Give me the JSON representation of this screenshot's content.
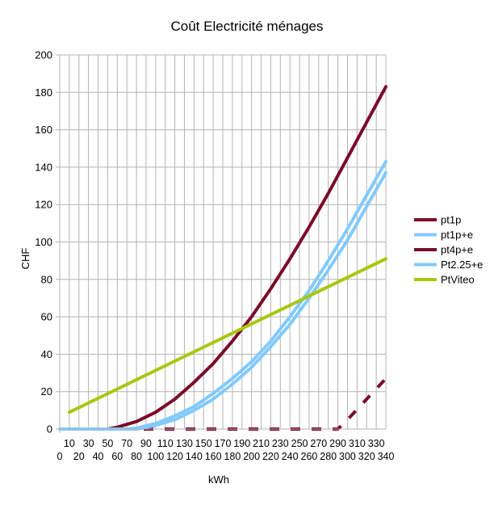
{
  "chart_data": {
    "type": "line",
    "title": "Coût Electricité ménages",
    "xlabel": "kWh",
    "ylabel": "CHF",
    "xlim": [
      0,
      340
    ],
    "ylim": [
      0,
      200
    ],
    "y_ticks": [
      0,
      20,
      40,
      60,
      80,
      100,
      120,
      140,
      160,
      180,
      200
    ],
    "x_ticks_upper": [
      10,
      30,
      50,
      70,
      90,
      110,
      130,
      150,
      170,
      190,
      210,
      230,
      250,
      270,
      290,
      310,
      330
    ],
    "x_ticks_lower": [
      0,
      20,
      40,
      60,
      80,
      100,
      120,
      140,
      160,
      180,
      200,
      220,
      240,
      260,
      280,
      300,
      320,
      340
    ],
    "grid": {
      "vertical": true,
      "horizontal": true
    },
    "legend_position": "right",
    "series": [
      {
        "name": "pt1p",
        "color": "#7b0a2a",
        "dash": "solid",
        "points": [
          [
            50,
            0
          ],
          [
            60,
            1
          ],
          [
            80,
            4
          ],
          [
            100,
            9
          ],
          [
            120,
            16
          ],
          [
            140,
            25
          ],
          [
            160,
            35
          ],
          [
            180,
            47
          ],
          [
            200,
            60
          ],
          [
            220,
            75
          ],
          [
            240,
            91
          ],
          [
            260,
            108
          ],
          [
            280,
            126
          ],
          [
            300,
            145
          ],
          [
            320,
            164
          ],
          [
            340,
            183
          ]
        ]
      },
      {
        "name": "pt1p+e",
        "color": "#82caff",
        "dash": "solid",
        "points": [
          [
            70,
            0
          ],
          [
            80,
            0.5
          ],
          [
            100,
            3
          ],
          [
            120,
            7
          ],
          [
            140,
            12
          ],
          [
            160,
            19
          ],
          [
            180,
            27
          ],
          [
            200,
            36
          ],
          [
            220,
            47
          ],
          [
            240,
            60
          ],
          [
            260,
            74
          ],
          [
            280,
            90
          ],
          [
            300,
            107
          ],
          [
            320,
            125
          ],
          [
            340,
            143
          ]
        ]
      },
      {
        "name": "pt4p+e",
        "color": "#7b0a2a",
        "dash": "dashed",
        "points": [
          [
            0,
            0
          ],
          [
            290,
            0
          ],
          [
            300,
            5
          ],
          [
            320,
            16
          ],
          [
            340,
            27
          ]
        ]
      },
      {
        "name": "Pt2.25+e",
        "color": "#82caff",
        "dash": "solid",
        "points": [
          [
            0,
            0
          ],
          [
            80,
            0
          ],
          [
            100,
            2
          ],
          [
            120,
            5
          ],
          [
            140,
            10
          ],
          [
            160,
            16
          ],
          [
            180,
            24
          ],
          [
            200,
            33
          ],
          [
            220,
            44
          ],
          [
            240,
            56
          ],
          [
            260,
            70
          ],
          [
            280,
            85
          ],
          [
            300,
            101
          ],
          [
            320,
            119
          ],
          [
            340,
            137
          ]
        ]
      },
      {
        "name": "PtViteo",
        "color": "#a8c70d",
        "dash": "solid",
        "points": [
          [
            10,
            9
          ],
          [
            340,
            91
          ]
        ]
      }
    ]
  }
}
